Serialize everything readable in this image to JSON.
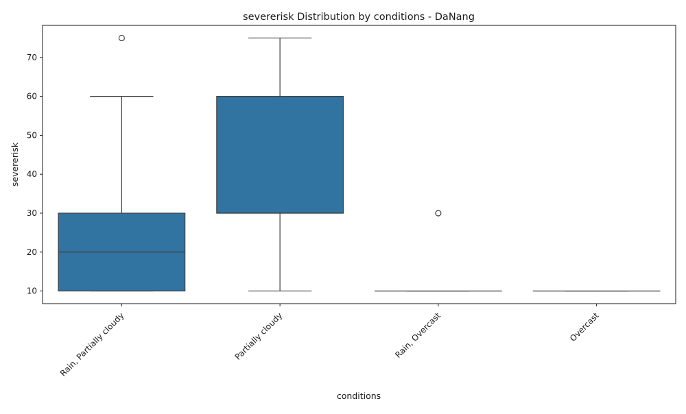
{
  "chart_data": {
    "type": "box",
    "title": "severerisk Distribution by conditions - DaNang",
    "xlabel": "conditions",
    "ylabel": "severerisk",
    "ylim": [
      6.75,
      78.25
    ],
    "yticks": [
      10,
      20,
      30,
      40,
      50,
      60,
      70
    ],
    "grid": false,
    "legend": "none",
    "box_color": "#3274a1",
    "line_color": "#3f3f3f",
    "categories": [
      "Rain, Partially cloudy",
      "Partially cloudy",
      "Rain, Overcast",
      "Overcast"
    ],
    "boxes": [
      {
        "category": "Rain, Partially cloudy",
        "whisker_low": 10,
        "q1": 10,
        "median": 20,
        "q3": 30,
        "whisker_high": 60,
        "outliers": [
          75
        ]
      },
      {
        "category": "Partially cloudy",
        "whisker_low": 10,
        "q1": 30,
        "median": 30,
        "q3": 60,
        "whisker_high": 75,
        "outliers": []
      },
      {
        "category": "Rain, Overcast",
        "whisker_low": 10,
        "q1": 10,
        "median": 10,
        "q3": 10,
        "whisker_high": 10,
        "outliers": [
          30
        ]
      },
      {
        "category": "Overcast",
        "whisker_low": 10,
        "q1": 10,
        "median": 10,
        "q3": 10,
        "whisker_high": 10,
        "outliers": []
      }
    ]
  }
}
